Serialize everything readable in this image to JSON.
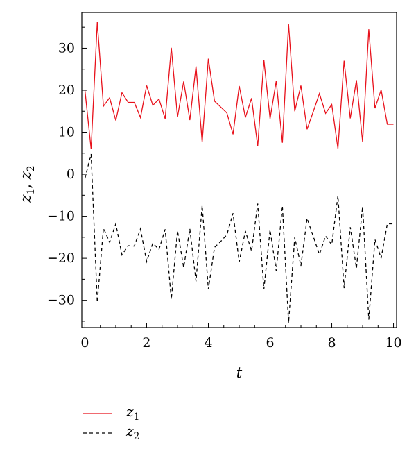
{
  "chart_data": {
    "type": "line",
    "title": "",
    "xlabel": "t",
    "ylabel": {
      "base1": "z",
      "sub1": "1",
      "sep": ", ",
      "base2": "z",
      "sub2": "2"
    },
    "xlim": [
      -0.1,
      10.1
    ],
    "ylim": [
      -36.5,
      38.5
    ],
    "xticks": [
      0,
      2,
      4,
      6,
      8,
      10
    ],
    "xtick_labels": [
      "0",
      "2",
      "4",
      "6",
      "8",
      "10"
    ],
    "yticks": [
      -30,
      -20,
      -10,
      0,
      10,
      20,
      30
    ],
    "ytick_labels": [
      "−30",
      "−20",
      "−10",
      "0",
      "10",
      "20",
      "30"
    ],
    "grid": false,
    "legend_position": "bottom-left",
    "series": [
      {
        "name": "z1",
        "legend": {
          "base": "z",
          "sub": "1"
        },
        "color": "#e8111b",
        "dash": "solid",
        "x": [
          0,
          0.2,
          0.4,
          0.6,
          0.8,
          1.0,
          1.2,
          1.4,
          1.6,
          1.8,
          2.0,
          2.2,
          2.4,
          2.6,
          2.8,
          3.0,
          3.2,
          3.4,
          3.6,
          3.8,
          4.0,
          4.2,
          4.4,
          4.6,
          4.8,
          5.0,
          5.2,
          5.4,
          5.6,
          5.8,
          6.0,
          6.2,
          6.4,
          6.6,
          6.8,
          7.0,
          7.2,
          7.4,
          7.6,
          7.8,
          8.0,
          8.2,
          8.4,
          8.6,
          8.8,
          9.0,
          9.2,
          9.4,
          9.6,
          9.8,
          10.0
        ],
        "y": [
          20.0,
          6.0,
          36.2,
          16.2,
          18.2,
          12.8,
          19.4,
          17.1,
          17.1,
          13.5,
          21.1,
          16.4,
          17.9,
          13.2,
          30.1,
          13.6,
          22.1,
          12.9,
          25.7,
          7.6,
          27.5,
          17.4,
          16.0,
          14.6,
          9.5,
          21.0,
          13.5,
          18.1,
          6.7,
          27.2,
          13.2,
          22.2,
          7.5,
          35.7,
          15.0,
          21.1,
          10.7,
          14.9,
          19.2,
          14.5,
          16.6,
          6.1,
          27.0,
          13.3,
          22.4,
          7.7,
          34.5,
          15.7,
          20.1,
          11.9,
          11.9
        ]
      },
      {
        "name": "z2",
        "legend": {
          "base": "z",
          "sub": "2"
        },
        "color": "#000000",
        "dash": "dashed",
        "x": [
          0,
          0.2,
          0.4,
          0.6,
          0.8,
          1.0,
          1.2,
          1.4,
          1.6,
          1.8,
          2.0,
          2.2,
          2.4,
          2.6,
          2.8,
          3.0,
          3.2,
          3.4,
          3.6,
          3.8,
          4.0,
          4.2,
          4.4,
          4.6,
          4.8,
          5.0,
          5.2,
          5.4,
          5.6,
          5.8,
          6.0,
          6.2,
          6.4,
          6.6,
          6.8,
          7.0,
          7.2,
          7.4,
          7.6,
          7.8,
          8.0,
          8.2,
          8.4,
          8.6,
          8.8,
          9.0,
          9.2,
          9.4,
          9.6,
          9.8,
          10.0
        ],
        "y": [
          -1.0,
          4.8,
          -30.5,
          -12.8,
          -16.2,
          -11.8,
          -19.2,
          -17.0,
          -17.1,
          -13.0,
          -20.8,
          -16.4,
          -17.9,
          -13.1,
          -29.8,
          -13.4,
          -22.2,
          -13.0,
          -25.5,
          -7.4,
          -27.4,
          -17.4,
          -16.0,
          -14.4,
          -9.3,
          -20.9,
          -13.5,
          -18.3,
          -7.0,
          -27.4,
          -13.2,
          -23.0,
          -7.5,
          -35.4,
          -15.0,
          -21.8,
          -10.5,
          -14.8,
          -19.1,
          -14.7,
          -16.8,
          -5.1,
          -27.1,
          -12.6,
          -22.4,
          -7.6,
          -34.6,
          -15.5,
          -20.0,
          -11.8,
          -11.8
        ]
      }
    ]
  }
}
